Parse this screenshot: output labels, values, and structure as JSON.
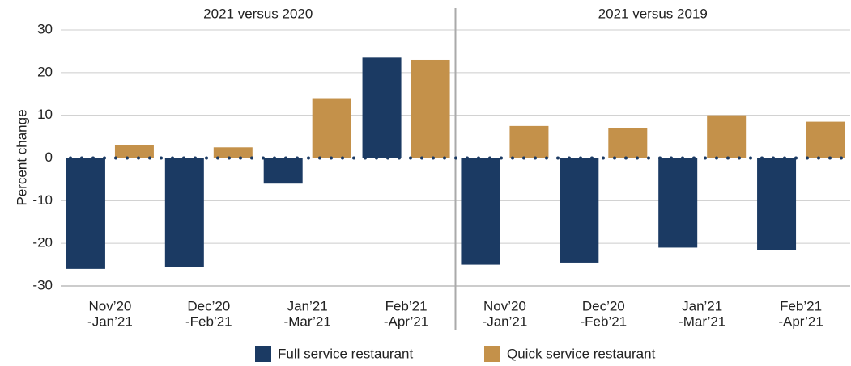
{
  "chart_data": {
    "type": "bar",
    "ylabel": "Percent change",
    "ylim": [
      -30,
      30
    ],
    "yticks": [
      -30,
      -20,
      -10,
      0,
      10,
      20,
      30
    ],
    "grid": true,
    "series": [
      {
        "name": "Full service restaurant",
        "color": "#1b3a63"
      },
      {
        "name": "Quick service restaurant",
        "color": "#c4914a"
      }
    ],
    "panels": [
      {
        "title": "2021 versus 2020",
        "categories": [
          [
            "Nov’20",
            "-Jan’21"
          ],
          [
            "Dec’20",
            "-Feb’21"
          ],
          [
            "Jan’21",
            "-Mar’21"
          ],
          [
            "Feb’21",
            "-Apr’21"
          ]
        ],
        "values": [
          [
            -26,
            -25.5,
            -6,
            23.5
          ],
          [
            3,
            2.5,
            14,
            23
          ]
        ]
      },
      {
        "title": "2021 versus 2019",
        "categories": [
          [
            "Nov’20",
            "-Jan’21"
          ],
          [
            "Dec’20",
            "-Feb’21"
          ],
          [
            "Jan’21",
            "-Mar’21"
          ],
          [
            "Feb’21",
            "-Apr’21"
          ]
        ],
        "values": [
          [
            -25,
            -24.5,
            -21,
            -21.5
          ],
          [
            7.5,
            7,
            10,
            8.5
          ]
        ]
      }
    ]
  }
}
